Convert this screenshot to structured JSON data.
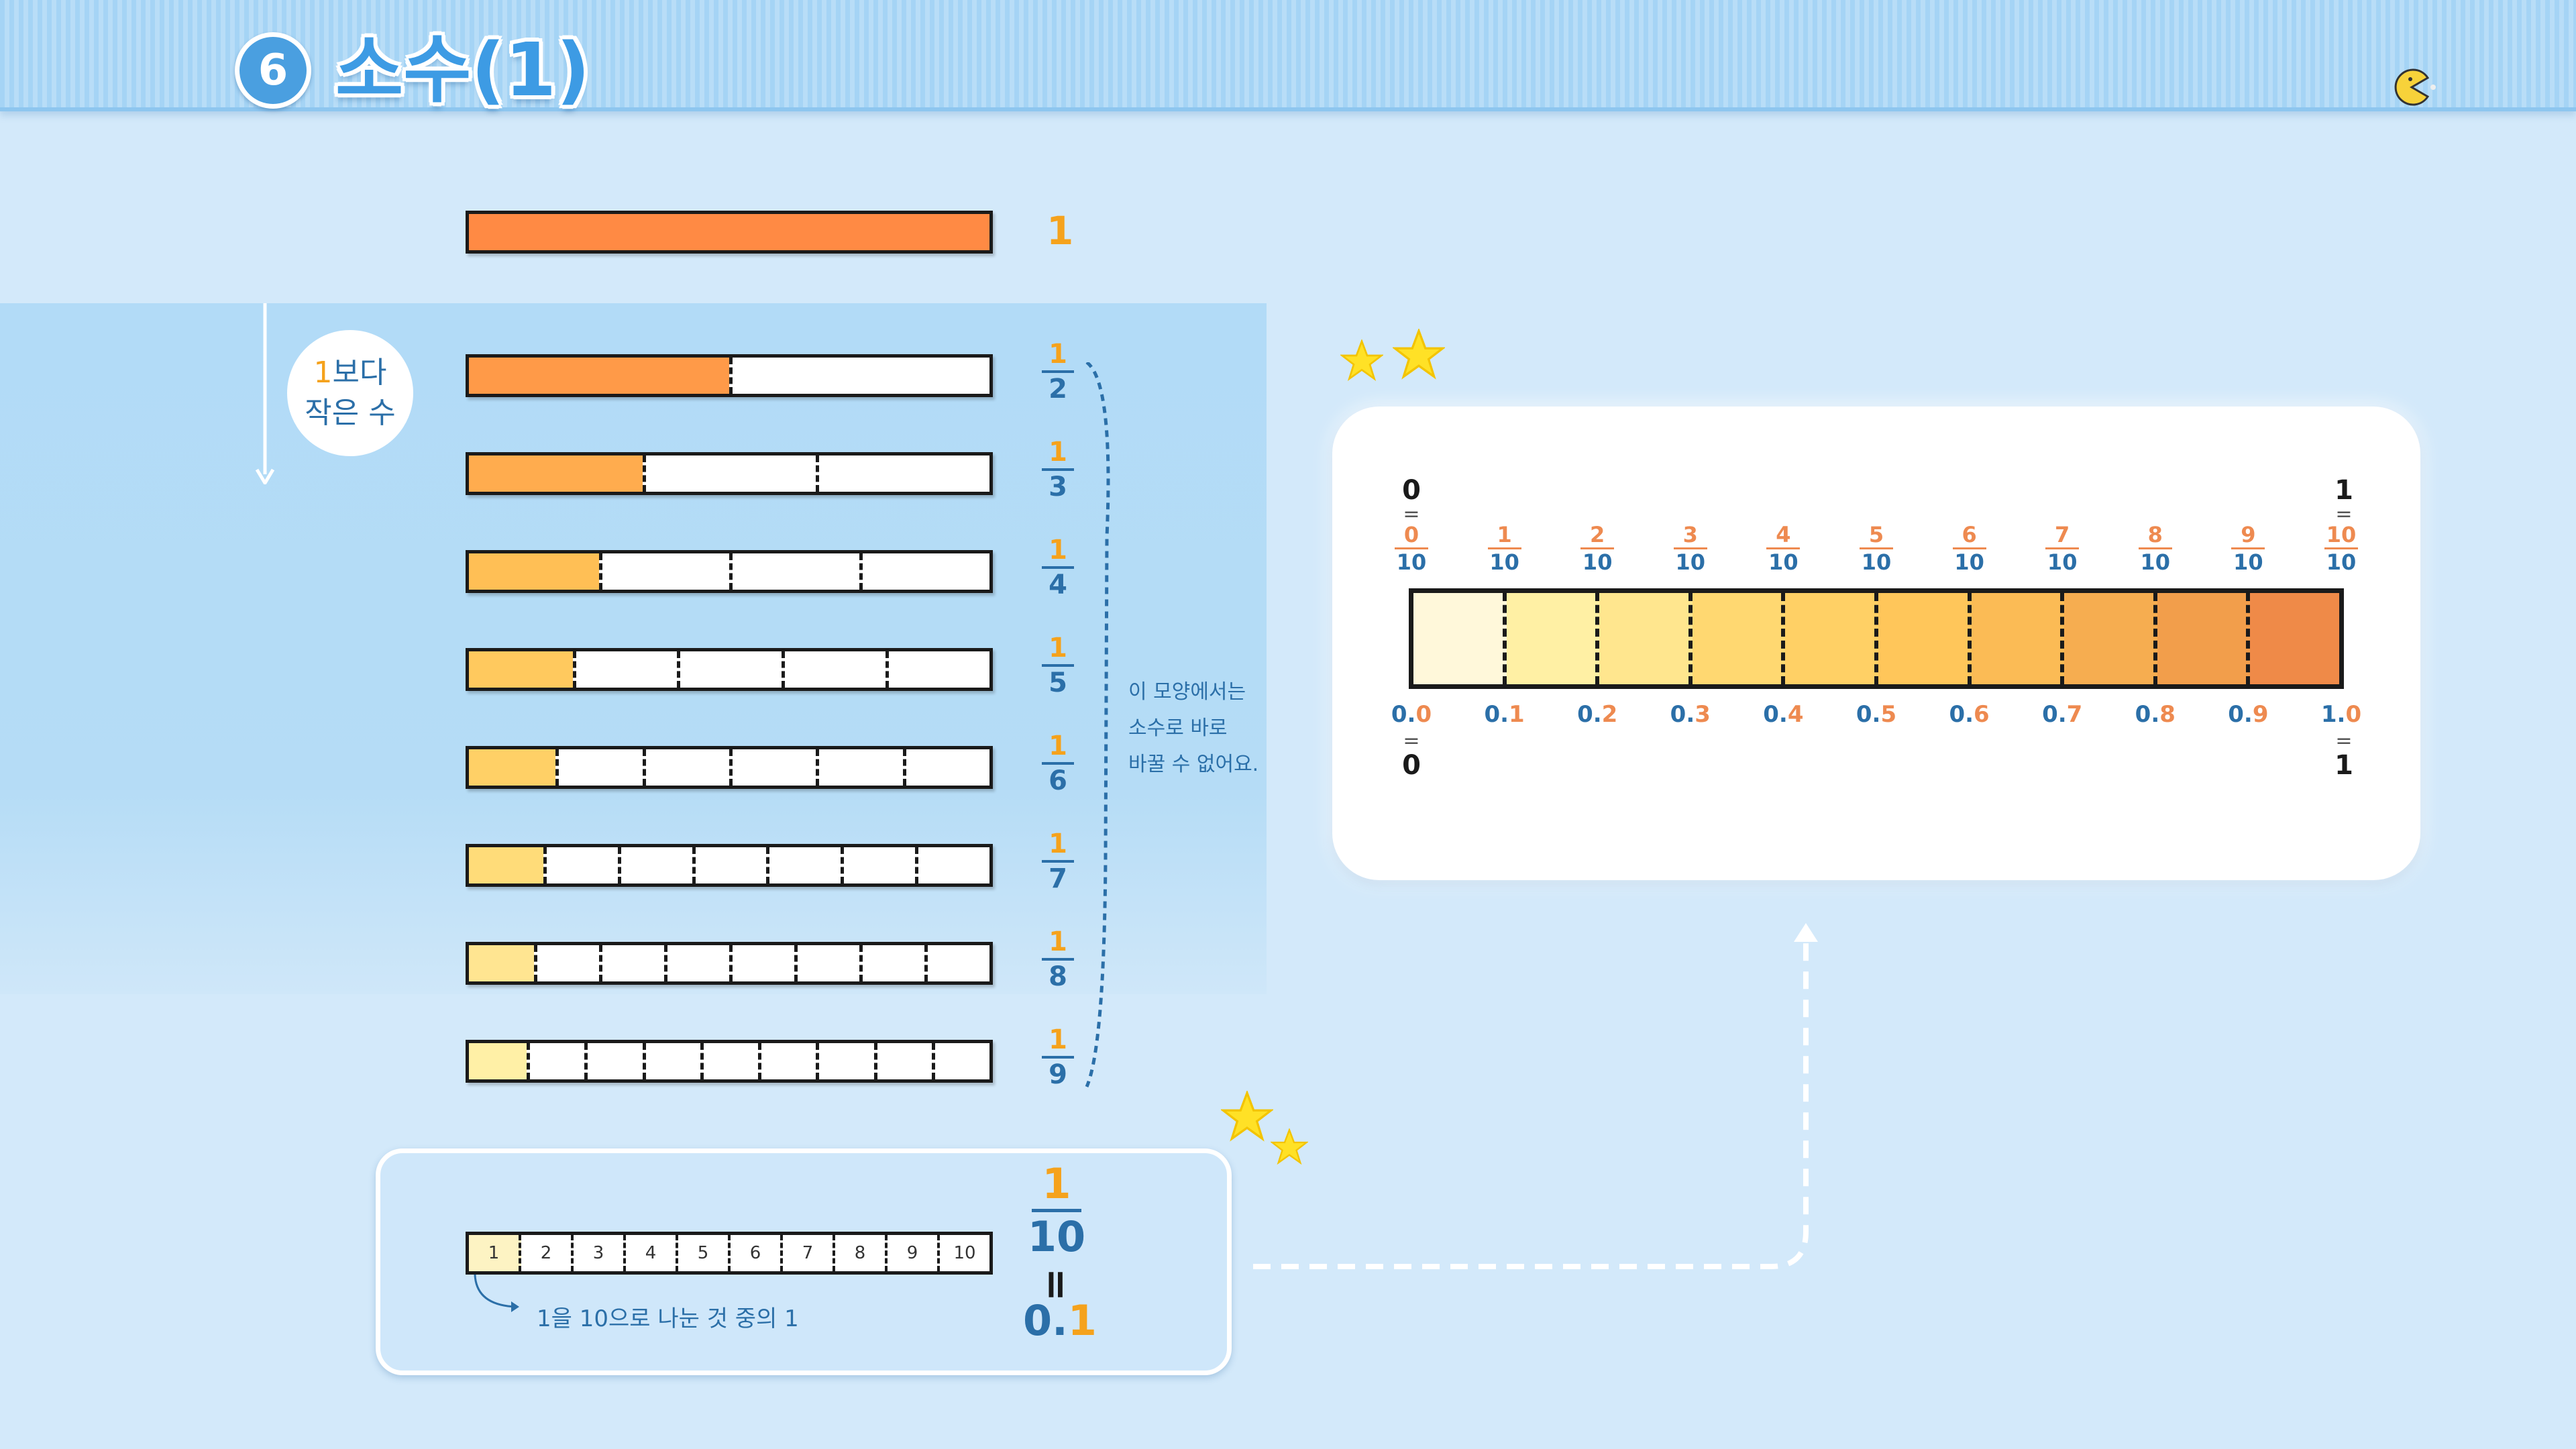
{
  "header": {
    "lesson_number": "6",
    "title": "소수(1)"
  },
  "colors": {
    "accent_blue": "#2b6fa8",
    "accent_orange": "#f5a21c",
    "header_blue": "#a5d4f5"
  },
  "whole_bar": {
    "label": "1",
    "fill_fraction": 1,
    "color": "#ff8a44"
  },
  "smaller_than_one": {
    "highlight": "1",
    "line1_rest": "보다",
    "line2": "작은 수"
  },
  "fraction_bars": [
    {
      "num": "1",
      "den": "2",
      "fill_color": "#ff9a48"
    },
    {
      "num": "1",
      "den": "3",
      "fill_color": "#ffac4e"
    },
    {
      "num": "1",
      "den": "4",
      "fill_color": "#ffbf55"
    },
    {
      "num": "1",
      "den": "5",
      "fill_color": "#ffc95e"
    },
    {
      "num": "1",
      "den": "6",
      "fill_color": "#ffd066"
    },
    {
      "num": "1",
      "den": "7",
      "fill_color": "#ffdc79"
    },
    {
      "num": "1",
      "den": "8",
      "fill_color": "#ffe591"
    },
    {
      "num": "1",
      "den": "9",
      "fill_color": "#fff0a6"
    }
  ],
  "note": {
    "line1": "이 모양에서는",
    "line2": "소수로 바로",
    "line3": "바꿀 수 없어요."
  },
  "tenths": {
    "cells": [
      "1",
      "2",
      "3",
      "4",
      "5",
      "6",
      "7",
      "8",
      "9",
      "10"
    ],
    "caption": "1을 10으로 나눈 것 중의 1",
    "fraction_num": "1",
    "fraction_den": "10",
    "equals": "=",
    "decimal_int": "0.",
    "decimal_digit": "1"
  },
  "number_line": {
    "start_whole": "0",
    "end_whole": "1",
    "numerators": [
      "0",
      "1",
      "2",
      "3",
      "4",
      "5",
      "6",
      "7",
      "8",
      "9",
      "10"
    ],
    "denominator": "10",
    "decimals": [
      {
        "a": "0.",
        "b": "0"
      },
      {
        "a": "0.",
        "b": "1"
      },
      {
        "a": "0.",
        "b": "2"
      },
      {
        "a": "0.",
        "b": "3"
      },
      {
        "a": "0.",
        "b": "4"
      },
      {
        "a": "0.",
        "b": "5"
      },
      {
        "a": "0.",
        "b": "6"
      },
      {
        "a": "0.",
        "b": "7"
      },
      {
        "a": "0.",
        "b": "8"
      },
      {
        "a": "0.",
        "b": "9"
      },
      {
        "a": "1.",
        "b": "0"
      }
    ],
    "segment_colors": [
      "#fff8da",
      "#fff0a4",
      "#ffe68e",
      "#ffd871",
      "#ffd065",
      "#ffc65a",
      "#fbbb55",
      "#f6ad50",
      "#f29e4b",
      "#ef8a48"
    ]
  }
}
